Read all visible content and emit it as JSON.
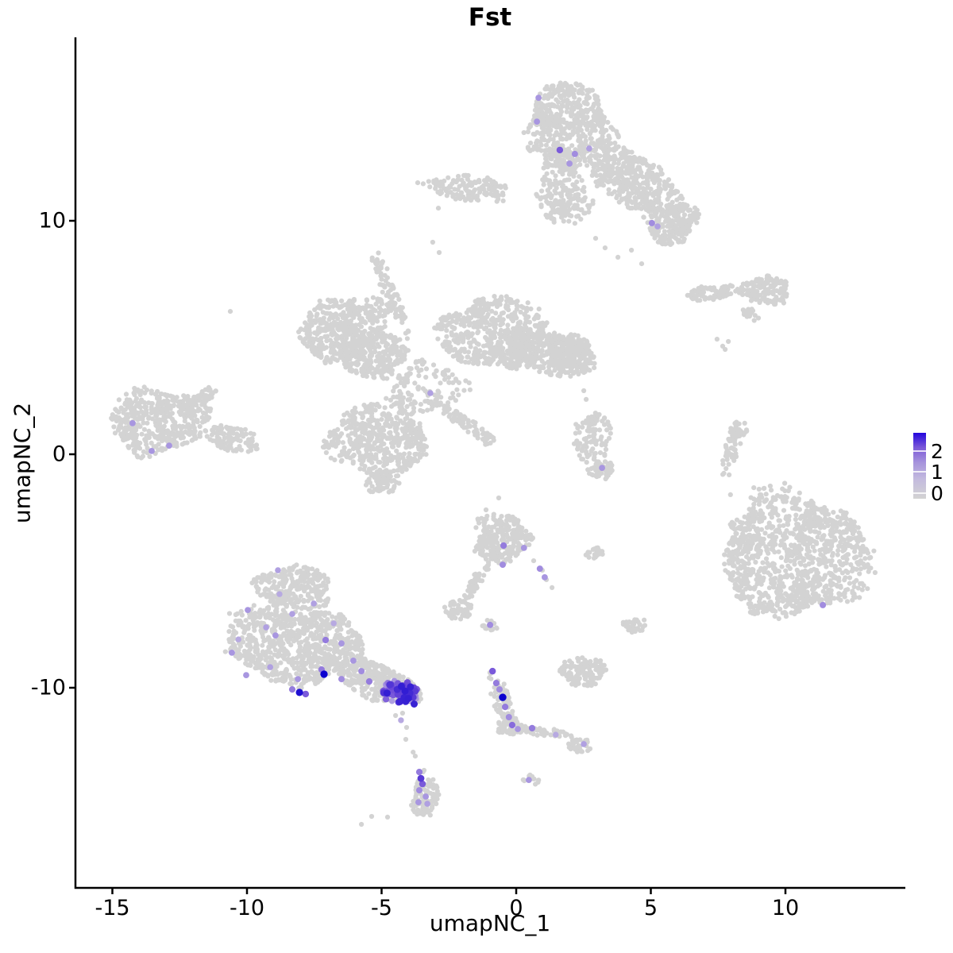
{
  "chart_data": {
    "type": "scatter",
    "title": "Fst",
    "xlabel": "umapNC_1",
    "ylabel": "umapNC_2",
    "x_ticks": [
      -15,
      -10,
      -5,
      0,
      5,
      10
    ],
    "y_ticks": [
      -10,
      0,
      10
    ],
    "x_range": [
      -16.4,
      14.5
    ],
    "y_range": [
      -18.6,
      17.9
    ],
    "grid": false,
    "legend": {
      "position": "right",
      "values": [
        0,
        1,
        2
      ],
      "color_low": "#D3D3D3",
      "color_high": "#0B00CF"
    },
    "point_color_low": "#D3D3D3",
    "point_color_high": "#0B00CF",
    "clusters": [
      {
        "name": "top-mushroom",
        "shapes": [
          [
            2.01,
            14.01,
            1.62,
            1.84,
            0,
            560
          ],
          [
            1.62,
            11.56,
            0.83,
            1.63,
            0,
            170
          ],
          [
            4.42,
            11.7,
            1.83,
            1.12,
            33,
            420
          ],
          [
            5.75,
            9.93,
            0.97,
            0.95,
            0,
            200
          ],
          [
            -1.77,
            11.39,
            1.65,
            0.54,
            5,
            150
          ],
          [
            1.92,
            10.68,
            0.9,
            0.8,
            0,
            50
          ]
        ],
        "purple": [
          [
            0.83,
            15.27,
            0.5
          ],
          [
            0.77,
            14.25,
            0.5
          ],
          [
            1.62,
            13.03,
            0.7
          ],
          [
            2.18,
            12.86,
            0.55
          ],
          [
            2.71,
            13.1,
            0.45
          ],
          [
            1.98,
            12.45,
            0.5
          ],
          [
            5.04,
            9.9,
            0.55
          ],
          [
            5.25,
            9.76,
            0.45
          ]
        ]
      },
      {
        "name": "right-islands",
        "shapes": [
          [
            7.37,
            6.94,
            1.06,
            0.31,
            -8,
            85
          ],
          [
            9.29,
            7.01,
            0.88,
            0.61,
            0,
            130
          ],
          [
            8.73,
            5.99,
            0.41,
            0.2,
            40,
            22
          ],
          [
            8.02,
            0.24,
            0.27,
            1.02,
            19,
            55
          ],
          [
            8.29,
            1.09,
            0.3,
            0.35,
            0,
            22
          ]
        ],
        "purple": []
      },
      {
        "name": "central-complex",
        "shapes": [
          [
            -6.43,
            5.44,
            1.71,
            1.29,
            -15,
            440
          ],
          [
            -5.31,
            4.22,
            1.24,
            0.95,
            0,
            280
          ],
          [
            -0.83,
            5.17,
            1.95,
            1.56,
            5,
            560
          ],
          [
            1.12,
            4.42,
            1.5,
            0.95,
            15,
            330
          ],
          [
            2.12,
            4.22,
            0.8,
            0.88,
            0,
            170
          ],
          [
            -5.07,
            0.68,
            1.92,
            1.63,
            0,
            500
          ],
          [
            -5.0,
            -1.2,
            0.6,
            0.5,
            0,
            60
          ],
          [
            -3.24,
            2.79,
            1.4,
            1.2,
            0,
            120
          ],
          [
            -4.66,
            6.87,
            0.25,
            2.05,
            -22,
            80
          ],
          [
            -1.92,
            1.36,
            1.18,
            0.27,
            35,
            65
          ],
          [
            -1.09,
            0.61,
            0.25,
            0.3,
            0,
            18
          ],
          [
            2.83,
            0.65,
            0.68,
            1.15,
            0,
            100
          ],
          [
            3.16,
            -0.68,
            0.5,
            0.35,
            0,
            55
          ]
        ],
        "purple": [
          [
            -3.19,
            2.62,
            0.45
          ],
          [
            3.19,
            -0.58,
            0.5
          ]
        ]
      },
      {
        "name": "left-cluster",
        "shapes": [
          [
            -13.27,
            1.43,
            1.77,
            1.43,
            0,
            430
          ],
          [
            -10.62,
            0.68,
            1.03,
            0.54,
            10,
            110
          ],
          [
            -11.86,
            2.28,
            0.8,
            0.35,
            -35,
            65
          ]
        ],
        "purple": [
          [
            -14.25,
            1.33,
            0.5
          ],
          [
            -13.54,
            0.14,
            0.5
          ],
          [
            -12.89,
            0.37,
            0.5
          ]
        ]
      },
      {
        "name": "right-big-blob",
        "shapes": [
          [
            10.38,
            -4.29,
            2.6,
            2.79,
            0,
            1050
          ],
          [
            8.2,
            -3.06,
            0.25,
            0.25,
            0,
            14
          ],
          [
            8.5,
            -3.95,
            0.22,
            0.22,
            0,
            12
          ],
          [
            8.11,
            -4.52,
            0.25,
            0.25,
            0,
            14
          ],
          [
            8.64,
            -5.1,
            0.2,
            0.2,
            0,
            10
          ],
          [
            8.35,
            -5.99,
            0.22,
            0.22,
            0,
            12
          ],
          [
            8.85,
            -6.67,
            0.2,
            0.2,
            0,
            10
          ]
        ],
        "purple": [
          [
            11.39,
            -6.46,
            0.55
          ]
        ]
      },
      {
        "name": "mid-small-cluster",
        "shapes": [
          [
            -0.53,
            -3.61,
            1.06,
            1.02,
            0,
            240
          ],
          [
            -1.47,
            -5.44,
            0.2,
            0.95,
            32,
            45
          ],
          [
            -2.15,
            -6.67,
            0.5,
            0.44,
            0,
            55
          ],
          [
            -0.97,
            -7.35,
            0.26,
            0.24,
            0,
            16
          ]
        ],
        "purple": [
          [
            -0.47,
            -3.91,
            0.6
          ],
          [
            0.29,
            -4.01,
            0.5
          ],
          [
            0.88,
            -4.9,
            0.55
          ],
          [
            1.06,
            -5.27,
            0.5
          ],
          [
            -0.5,
            -4.73,
            0.55
          ],
          [
            -0.97,
            -7.31,
            0.55
          ]
        ]
      },
      {
        "name": "small-islands",
        "shapes": [
          [
            2.51,
            -9.29,
            0.83,
            0.65,
            0,
            120
          ],
          [
            4.42,
            -7.31,
            0.44,
            0.3,
            0,
            32
          ],
          [
            2.95,
            -4.25,
            0.35,
            0.25,
            0,
            22
          ]
        ],
        "purple": []
      },
      {
        "name": "bottom-left-cluster",
        "shapes": [
          [
            -8.26,
            -5.71,
            1.42,
            0.95,
            0,
            260
          ],
          [
            -8.26,
            -8.16,
            2.51,
            1.63,
            0,
            760
          ],
          [
            -5.16,
            -9.73,
            1.71,
            0.75,
            20,
            360
          ]
        ],
        "purple": [
          [
            -8.85,
            -4.97,
            0.45
          ],
          [
            -9.97,
            -6.67,
            0.5
          ],
          [
            -8.32,
            -6.84,
            0.45
          ],
          [
            -8.94,
            -7.76,
            0.5
          ],
          [
            -7.08,
            -7.96,
            0.6
          ],
          [
            -10.56,
            -8.5,
            0.5
          ],
          [
            -9.14,
            -9.12,
            0.45
          ],
          [
            -10.03,
            -9.46,
            0.5
          ],
          [
            -8.11,
            -9.63,
            0.5
          ],
          [
            -7.23,
            -9.22,
            0.6
          ],
          [
            -7.14,
            -9.42,
            1.0
          ],
          [
            -8.05,
            -10.2,
            0.95
          ],
          [
            -7.82,
            -10.27,
            0.7
          ],
          [
            -8.32,
            -10.07,
            0.6
          ],
          [
            -6.05,
            -8.84,
            0.5
          ],
          [
            -6.49,
            -9.63,
            0.55
          ],
          [
            -8.79,
            -5.99,
            0.4
          ],
          [
            -7.52,
            -6.39,
            0.45
          ],
          [
            -6.78,
            -7.24,
            0.4
          ],
          [
            -9.29,
            -7.41,
            0.45
          ],
          [
            -10.32,
            -7.93,
            0.4
          ],
          [
            -6.49,
            -8.1,
            0.5
          ],
          [
            -5.75,
            -9.29,
            0.55
          ],
          [
            -5.46,
            -9.73,
            0.6
          ],
          [
            -4.28,
            -11.39,
            0.4
          ],
          [
            -4.66,
            -9.86,
            0.8
          ],
          [
            -4.42,
            -10.07,
            0.85
          ],
          [
            -4.13,
            -10.14,
            0.9
          ],
          [
            -3.98,
            -10.34,
            0.85
          ],
          [
            -3.83,
            -10.41,
            0.8
          ],
          [
            -4.28,
            -10.48,
            0.75
          ],
          [
            -4.57,
            -10.31,
            0.7
          ],
          [
            -3.75,
            -10.14,
            0.8
          ],
          [
            -4.07,
            -9.86,
            0.75
          ],
          [
            -4.78,
            -10.14,
            0.7
          ]
        ],
        "purple_fill": {
          "shape": [
            -4.28,
            -10.2,
            0.75,
            0.55,
            20
          ],
          "n": 60,
          "i_min": 0.45,
          "i_max": 0.9
        }
      },
      {
        "name": "bottom-strand",
        "shapes": [
          [
            -0.53,
            -10.48,
            0.3,
            1.45,
            -20,
            85
          ],
          [
            -0.21,
            -11.67,
            0.5,
            0.37,
            0,
            45
          ],
          [
            1.12,
            -11.9,
            0.95,
            0.18,
            8,
            45
          ],
          [
            2.45,
            -12.48,
            0.5,
            0.31,
            0,
            40
          ]
        ],
        "purple": [
          [
            -0.88,
            -9.29,
            0.7
          ],
          [
            -0.74,
            -9.8,
            0.6
          ],
          [
            -0.62,
            -10.07,
            0.55
          ],
          [
            -0.5,
            -10.41,
            1.0
          ],
          [
            -0.41,
            -10.82,
            0.6
          ],
          [
            -0.27,
            -11.26,
            0.55
          ],
          [
            -0.15,
            -11.6,
            0.65
          ],
          [
            0.06,
            -11.77,
            0.5
          ],
          [
            0.59,
            -11.73,
            0.6
          ],
          [
            2.51,
            -12.41,
            0.45
          ],
          [
            1.47,
            -12.01,
            0.4
          ]
        ]
      },
      {
        "name": "bottom-blob",
        "shapes": [
          [
            -3.36,
            -14.56,
            0.44,
            1.05,
            8,
            75
          ],
          [
            -3.54,
            -15.17,
            0.4,
            0.3,
            0,
            22
          ]
        ],
        "purple": [
          [
            -3.6,
            -13.61,
            0.6
          ],
          [
            -3.54,
            -13.88,
            0.8
          ],
          [
            -3.48,
            -14.12,
            0.7
          ],
          [
            -3.6,
            -14.39,
            0.55
          ],
          [
            -3.36,
            -14.66,
            0.5
          ],
          [
            -3.63,
            -14.9,
            0.5
          ],
          [
            -3.3,
            -14.97,
            0.45
          ]
        ]
      },
      {
        "name": "tiny-bottom-dot",
        "shapes": [
          [
            0.53,
            -13.98,
            0.3,
            0.25,
            0,
            12
          ]
        ],
        "purple": [
          [
            0.47,
            -13.95,
            0.5
          ]
        ]
      }
    ],
    "singles": [
      [
        2.95,
        9.25
      ],
      [
        3.3,
        8.84
      ],
      [
        3.78,
        8.44
      ],
      [
        4.28,
        8.74
      ],
      [
        4.66,
        8.16
      ],
      [
        -2.89,
        10.54
      ],
      [
        -3.1,
        9.08
      ],
      [
        -2.86,
        8.64
      ],
      [
        -10.62,
        6.12
      ],
      [
        2.51,
        2.72
      ],
      [
        2.6,
        2.35
      ],
      [
        7.46,
        4.93
      ],
      [
        7.67,
        4.63
      ],
      [
        7.88,
        4.83
      ],
      [
        7.76,
        4.49
      ],
      [
        7.91,
        -0.88
      ],
      [
        -3.75,
        -12.93
      ],
      [
        -4.78,
        -15.54
      ],
      [
        -5.75,
        -15.85
      ],
      [
        -5.37,
        -15.51
      ],
      [
        -4.48,
        -11.19
      ],
      [
        -4.22,
        -11.09
      ],
      [
        -4.07,
        -11.7
      ],
      [
        -4.1,
        -12.21
      ],
      [
        -3.83,
        -12.76
      ],
      [
        7.96,
        -1.73
      ],
      [
        8.7,
        -2.38
      ],
      [
        8.61,
        -2.76
      ],
      [
        8.26,
        -3.67
      ],
      [
        8.91,
        -3.23
      ],
      [
        0.65,
        -4.56
      ],
      [
        0.97,
        -4.97
      ],
      [
        1.12,
        -5.37
      ],
      [
        1.33,
        -5.71
      ],
      [
        -0.65,
        -1.87
      ],
      [
        -1.12,
        -2.38
      ]
    ]
  }
}
